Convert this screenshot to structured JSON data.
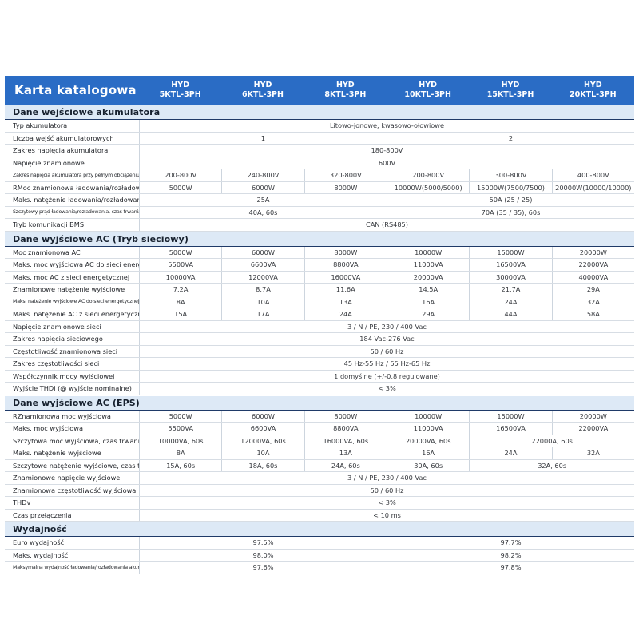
{
  "header": {
    "title": "Karta katalogowa",
    "columns": [
      "HYD\n5KTL-3PH",
      "HYD\n6KTL-3PH",
      "HYD\n8KTL-3PH",
      "HYD\n10KTL-3PH",
      "HYD\n15KTL-3PH",
      "HYD\n20KTL-3PH"
    ]
  },
  "colors": {
    "header_blue": "#2a6cc5",
    "section_band_blue": "#dde9f6",
    "section_border_navy": "#1f3a68",
    "row_border_gray": "#d7dde4"
  },
  "sections": [
    {
      "title": "Dane wejściowe akumulatora",
      "rows": [
        {
          "label": "Typ akumulatora",
          "cells": [
            {
              "text": "Litowo-jonowe, kwasowo-ołowiowe",
              "span": 6
            }
          ]
        },
        {
          "label": "Liczba wejść akumulatorowych",
          "cells": [
            {
              "text": "1",
              "span": 3
            },
            {
              "text": "2",
              "span": 3
            }
          ]
        },
        {
          "label": "Zakres napięcia akumulatora",
          "cells": [
            {
              "text": "180-800V",
              "span": 6
            }
          ]
        },
        {
          "label": "Napięcie znamionowe",
          "cells": [
            {
              "text": "600V",
              "span": 6
            }
          ]
        },
        {
          "label": "Zakres napięcia akumulatora przy pełnym obciążeniu",
          "cells": [
            {
              "text": "200-800V",
              "span": 1
            },
            {
              "text": "240-800V",
              "span": 1
            },
            {
              "text": "320-800V",
              "span": 1
            },
            {
              "text": "200-800V",
              "span": 1
            },
            {
              "text": "300-800V",
              "span": 1
            },
            {
              "text": "400-800V",
              "span": 1
            }
          ]
        },
        {
          "label": "RMoc znamionowa ładowania/rozładowania",
          "cells": [
            {
              "text": "5000W",
              "span": 1
            },
            {
              "text": "6000W",
              "span": 1
            },
            {
              "text": "8000W",
              "span": 1
            },
            {
              "text": "10000W(5000/5000)",
              "span": 1
            },
            {
              "text": "15000W(7500/7500)",
              "span": 1
            },
            {
              "text": "20000W(10000/10000)",
              "span": 1
            }
          ]
        },
        {
          "label": "Maks. natężenie ładowania/rozładowania",
          "cells": [
            {
              "text": "25A",
              "span": 3
            },
            {
              "text": "50A (25 / 25)",
              "span": 3
            }
          ]
        },
        {
          "label": "Szczytowy prąd ładowania/rozładowania, czas trwania",
          "cells": [
            {
              "text": "40A, 60s",
              "span": 3
            },
            {
              "text": "70A (35 / 35), 60s",
              "span": 3
            }
          ]
        },
        {
          "label": "Tryb komunikacji BMS",
          "cells": [
            {
              "text": "CAN (RS485)",
              "span": 6
            }
          ]
        }
      ]
    },
    {
      "title": "Dane wyjściowe AC (Tryb sieciowy)",
      "rows": [
        {
          "label": "Moc znamionowa AC",
          "cells": [
            {
              "text": "5000W",
              "span": 1
            },
            {
              "text": "6000W",
              "span": 1
            },
            {
              "text": "8000W",
              "span": 1
            },
            {
              "text": "10000W",
              "span": 1
            },
            {
              "text": "15000W",
              "span": 1
            },
            {
              "text": "20000W",
              "span": 1
            }
          ]
        },
        {
          "label": "Maks. moc wyjściowa AC do sieci energetycznej",
          "cells": [
            {
              "text": "5500VA",
              "span": 1
            },
            {
              "text": "6600VA",
              "span": 1
            },
            {
              "text": "8800VA",
              "span": 1
            },
            {
              "text": "11000VA",
              "span": 1
            },
            {
              "text": "16500VA",
              "span": 1
            },
            {
              "text": "22000VA",
              "span": 1
            }
          ]
        },
        {
          "label": "Maks. moc AC z sieci energetycznej",
          "cells": [
            {
              "text": "10000VA",
              "span": 1
            },
            {
              "text": "12000VA",
              "span": 1
            },
            {
              "text": "16000VA",
              "span": 1
            },
            {
              "text": "20000VA",
              "span": 1
            },
            {
              "text": "30000VA",
              "span": 1
            },
            {
              "text": "40000VA",
              "span": 1
            }
          ]
        },
        {
          "label": "Znamionowe natężenie wyjściowe",
          "cells": [
            {
              "text": "7.2A",
              "span": 1
            },
            {
              "text": "8.7A",
              "span": 1
            },
            {
              "text": "11.6A",
              "span": 1
            },
            {
              "text": "14.5A",
              "span": 1
            },
            {
              "text": "21.7A",
              "span": 1
            },
            {
              "text": "29A",
              "span": 1
            }
          ]
        },
        {
          "label": "Maks. natężenie wyjściowe AC do sieci energetycznej",
          "cells": [
            {
              "text": "8A",
              "span": 1
            },
            {
              "text": "10A",
              "span": 1
            },
            {
              "text": "13A",
              "span": 1
            },
            {
              "text": "16A",
              "span": 1
            },
            {
              "text": "24A",
              "span": 1
            },
            {
              "text": "32A",
              "span": 1
            }
          ]
        },
        {
          "label": "Maks. natężenie AC z sieci energetycznej",
          "cells": [
            {
              "text": "15A",
              "span": 1
            },
            {
              "text": "17A",
              "span": 1
            },
            {
              "text": "24A",
              "span": 1
            },
            {
              "text": "29A",
              "span": 1
            },
            {
              "text": "44A",
              "span": 1
            },
            {
              "text": "58A",
              "span": 1
            }
          ]
        },
        {
          "label": "Napięcie znamionowe sieci",
          "cells": [
            {
              "text": "3 / N / PE, 230 / 400 Vac",
              "span": 6
            }
          ]
        },
        {
          "label": "Zakres napięcia sieciowego",
          "cells": [
            {
              "text": "184 Vac-276 Vac",
              "span": 6
            }
          ]
        },
        {
          "label": "Częstotliwość znamionowa sieci",
          "cells": [
            {
              "text": "50 / 60 Hz",
              "span": 6
            }
          ]
        },
        {
          "label": "Zakres częstotliwości sieci",
          "cells": [
            {
              "text": "45 Hz-55 Hz / 55 Hz-65 Hz",
              "span": 6
            }
          ]
        },
        {
          "label": "Współczynnik mocy wyjściowej",
          "cells": [
            {
              "text": "1 domyślne (+/-0,8 regulowane)",
              "span": 6
            }
          ]
        },
        {
          "label": "Wyjście THDi (@ wyjście nominalne)",
          "cells": [
            {
              "text": "< 3%",
              "span": 6
            }
          ]
        }
      ]
    },
    {
      "title": "Dane wyjściowe AC (EPS)",
      "rows": [
        {
          "label": "RZnamionowa moc wyjściowa",
          "cells": [
            {
              "text": "5000W",
              "span": 1
            },
            {
              "text": "6000W",
              "span": 1
            },
            {
              "text": "8000W",
              "span": 1
            },
            {
              "text": "10000W",
              "span": 1
            },
            {
              "text": "15000W",
              "span": 1
            },
            {
              "text": "20000W",
              "span": 1
            }
          ]
        },
        {
          "label": "Maks. moc wyjściowa",
          "cells": [
            {
              "text": "5500VA",
              "span": 1
            },
            {
              "text": "6600VA",
              "span": 1
            },
            {
              "text": "8800VA",
              "span": 1
            },
            {
              "text": "11000VA",
              "span": 1
            },
            {
              "text": "16500VA",
              "span": 1
            },
            {
              "text": "22000VA",
              "span": 1
            }
          ]
        },
        {
          "label": "Szczytowa moc wyjściowa, czas trwania",
          "cells": [
            {
              "text": "10000VA, 60s",
              "span": 1
            },
            {
              "text": "12000VA, 60s",
              "span": 1
            },
            {
              "text": "16000VA, 60s",
              "span": 1
            },
            {
              "text": "20000VA, 60s",
              "span": 1
            },
            {
              "text": "22000A, 60s",
              "span": 2
            }
          ]
        },
        {
          "label": "Maks. natężenie wyjściowe",
          "cells": [
            {
              "text": "8A",
              "span": 1
            },
            {
              "text": "10A",
              "span": 1
            },
            {
              "text": "13A",
              "span": 1
            },
            {
              "text": "16A",
              "span": 1
            },
            {
              "text": "24A",
              "span": 1
            },
            {
              "text": "32A",
              "span": 1
            }
          ]
        },
        {
          "label": "Szczytowe natężenie wyjściowe, czas trwania",
          "cells": [
            {
              "text": "15A, 60s",
              "span": 1
            },
            {
              "text": "18A, 60s",
              "span": 1
            },
            {
              "text": "24A, 60s",
              "span": 1
            },
            {
              "text": "30A, 60s",
              "span": 1
            },
            {
              "text": "32A, 60s",
              "span": 2
            }
          ]
        },
        {
          "label": "Znamionowe napięcie wyjściowe",
          "cells": [
            {
              "text": "3 / N / PE, 230 / 400 Vac",
              "span": 6
            }
          ]
        },
        {
          "label": "Znamionowa częstotliwość wyjściowa",
          "cells": [
            {
              "text": "50 / 60 Hz",
              "span": 6
            }
          ]
        },
        {
          "label": "THDv",
          "cells": [
            {
              "text": "< 3%",
              "span": 6
            }
          ]
        },
        {
          "label": "Czas przełączenia",
          "cells": [
            {
              "text": "< 10 ms",
              "span": 6
            }
          ]
        }
      ]
    },
    {
      "title": "Wydajność",
      "rows": [
        {
          "label": "Euro wydajność",
          "cells": [
            {
              "text": "97.5%",
              "span": 3
            },
            {
              "text": "97.7%",
              "span": 3
            }
          ]
        },
        {
          "label": "Maks. wydajność",
          "cells": [
            {
              "text": "98.0%",
              "span": 3
            },
            {
              "text": "98.2%",
              "span": 3
            }
          ]
        },
        {
          "label": "Maksymalna wydajność ładowania/rozładowania akumulatora",
          "cells": [
            {
              "text": "97.6%",
              "span": 3
            },
            {
              "text": "97.8%",
              "span": 3
            }
          ]
        }
      ]
    }
  ]
}
